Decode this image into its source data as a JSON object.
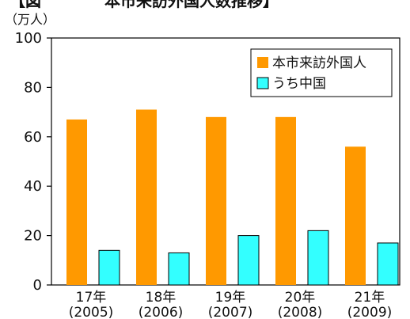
{
  "chart_data": {
    "type": "bar",
    "title": "【図　　　　本市来訪外国人数推移】",
    "unit_label": "（万人）",
    "categories": [
      {
        "label": "17年",
        "sublabel": "(2005)"
      },
      {
        "label": "18年",
        "sublabel": "(2006)"
      },
      {
        "label": "19年",
        "sublabel": "(2007)"
      },
      {
        "label": "20年",
        "sublabel": "(2008)"
      },
      {
        "label": "21年",
        "sublabel": "(2009)"
      }
    ],
    "series": [
      {
        "name": "本市来訪外国人",
        "color": "#FF9900",
        "values": [
          67,
          71,
          68,
          68,
          56
        ]
      },
      {
        "name": "うち中国",
        "color": "#33FFFF",
        "values": [
          14,
          13,
          20,
          22,
          17
        ]
      }
    ],
    "ylim": [
      0,
      100
    ],
    "yticks": [
      "0",
      "20",
      "40",
      "60",
      "80",
      "100"
    ],
    "grid": false,
    "legend_position": "top-right"
  }
}
